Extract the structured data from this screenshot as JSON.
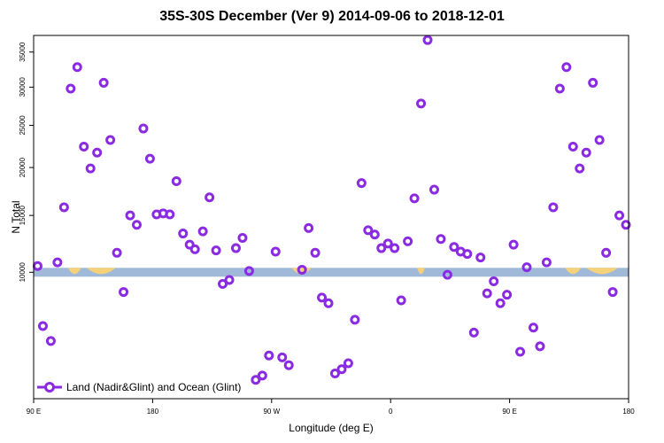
{
  "chart_data": {
    "type": "scatter",
    "title": "35S-30S December (Ver 9)   2014-09-06 to 2018-12-01",
    "xlabel": "Longitude (deg E)",
    "ylabel": "N Total",
    "xlim": [
      90,
      540
    ],
    "ylim": [
      2500,
      37500
    ],
    "y_scale": "sqrt",
    "x_ticks": [
      {
        "value": 90,
        "label": "90 E"
      },
      {
        "value": 180,
        "label": "180"
      },
      {
        "value": 270,
        "label": "90 W"
      },
      {
        "value": 360,
        "label": "0"
      },
      {
        "value": 450,
        "label": "90 E"
      },
      {
        "value": 540,
        "label": "180"
      }
    ],
    "y_ticks": [
      {
        "value": 10000,
        "label": "10000"
      },
      {
        "value": 15000,
        "label": "15000"
      },
      {
        "value": 20000,
        "label": "20000"
      },
      {
        "value": 25000,
        "label": "25000"
      },
      {
        "value": 30000,
        "label": "30000"
      },
      {
        "value": 35000,
        "label": "35000"
      }
    ],
    "grid": false,
    "legend_position": "bottom-left",
    "series": [
      {
        "name": "Land (Nadir&Glint) and Ocean (Glint)",
        "color": "#8a2be2",
        "points": [
          [
            93,
            10500
          ],
          [
            97,
            6200
          ],
          [
            103,
            5300
          ],
          [
            108,
            10800
          ],
          [
            113,
            15800
          ],
          [
            118,
            29800
          ],
          [
            123,
            32800
          ],
          [
            128,
            22400
          ],
          [
            133,
            19900
          ],
          [
            138,
            21700
          ],
          [
            143,
            30600
          ],
          [
            148,
            23200
          ],
          [
            153,
            11600
          ],
          [
            158,
            8500
          ],
          [
            163,
            15000
          ],
          [
            168,
            14100
          ],
          [
            173,
            24600
          ],
          [
            178,
            21000
          ],
          [
            183,
            15100
          ],
          [
            188,
            15200
          ],
          [
            193,
            15100
          ],
          [
            198,
            18500
          ],
          [
            203,
            13300
          ],
          [
            208,
            12300
          ],
          [
            212,
            11900
          ],
          [
            218,
            13500
          ],
          [
            223,
            16800
          ],
          [
            228,
            11800
          ],
          [
            233,
            9100
          ],
          [
            238,
            9400
          ],
          [
            243,
            12000
          ],
          [
            248,
            12900
          ],
          [
            253,
            10100
          ],
          [
            258,
            3300
          ],
          [
            263,
            3500
          ],
          [
            268,
            4500
          ],
          [
            273,
            11700
          ],
          [
            278,
            4400
          ],
          [
            283,
            4000
          ],
          [
            293,
            10200
          ],
          [
            298,
            13800
          ],
          [
            303,
            11600
          ],
          [
            308,
            8100
          ],
          [
            313,
            7700
          ],
          [
            318,
            3600
          ],
          [
            323,
            3800
          ],
          [
            328,
            4100
          ],
          [
            333,
            6600
          ],
          [
            338,
            18300
          ],
          [
            343,
            13600
          ],
          [
            348,
            13200
          ],
          [
            353,
            12000
          ],
          [
            358,
            12400
          ],
          [
            363,
            12000
          ],
          [
            368,
            7900
          ],
          [
            373,
            12600
          ],
          [
            378,
            16700
          ],
          [
            383,
            27800
          ],
          [
            388,
            36800
          ],
          [
            393,
            17600
          ],
          [
            398,
            12800
          ],
          [
            403,
            9800
          ],
          [
            408,
            12100
          ],
          [
            413,
            11700
          ],
          [
            418,
            11500
          ],
          [
            423,
            5800
          ],
          [
            428,
            11200
          ],
          [
            433,
            8400
          ],
          [
            438,
            9300
          ],
          [
            443,
            7700
          ],
          [
            448,
            8300
          ],
          [
            453,
            12300
          ],
          [
            458,
            4700
          ],
          [
            463,
            10400
          ],
          [
            468,
            6100
          ],
          [
            473,
            5000
          ],
          [
            478,
            10800
          ],
          [
            483,
            15800
          ],
          [
            488,
            29800
          ],
          [
            493,
            32800
          ],
          [
            498,
            22400
          ],
          [
            503,
            19900
          ],
          [
            508,
            21700
          ],
          [
            513,
            30600
          ],
          [
            518,
            23200
          ],
          [
            523,
            11600
          ],
          [
            528,
            8500
          ],
          [
            533,
            15000
          ],
          [
            538,
            14100
          ],
          [
            543,
            24600
          ],
          [
            548,
            21000
          ]
        ]
      }
    ],
    "surface_band": {
      "y": 10000,
      "colors": {
        "ocean": "#a1b9d8",
        "land": "#f5d17a"
      },
      "land_spans": [
        [
          116,
          126
        ],
        [
          130,
          152
        ],
        [
          285,
          300
        ],
        [
          380,
          386
        ],
        [
          492,
          504
        ],
        [
          508,
          532
        ]
      ]
    }
  }
}
